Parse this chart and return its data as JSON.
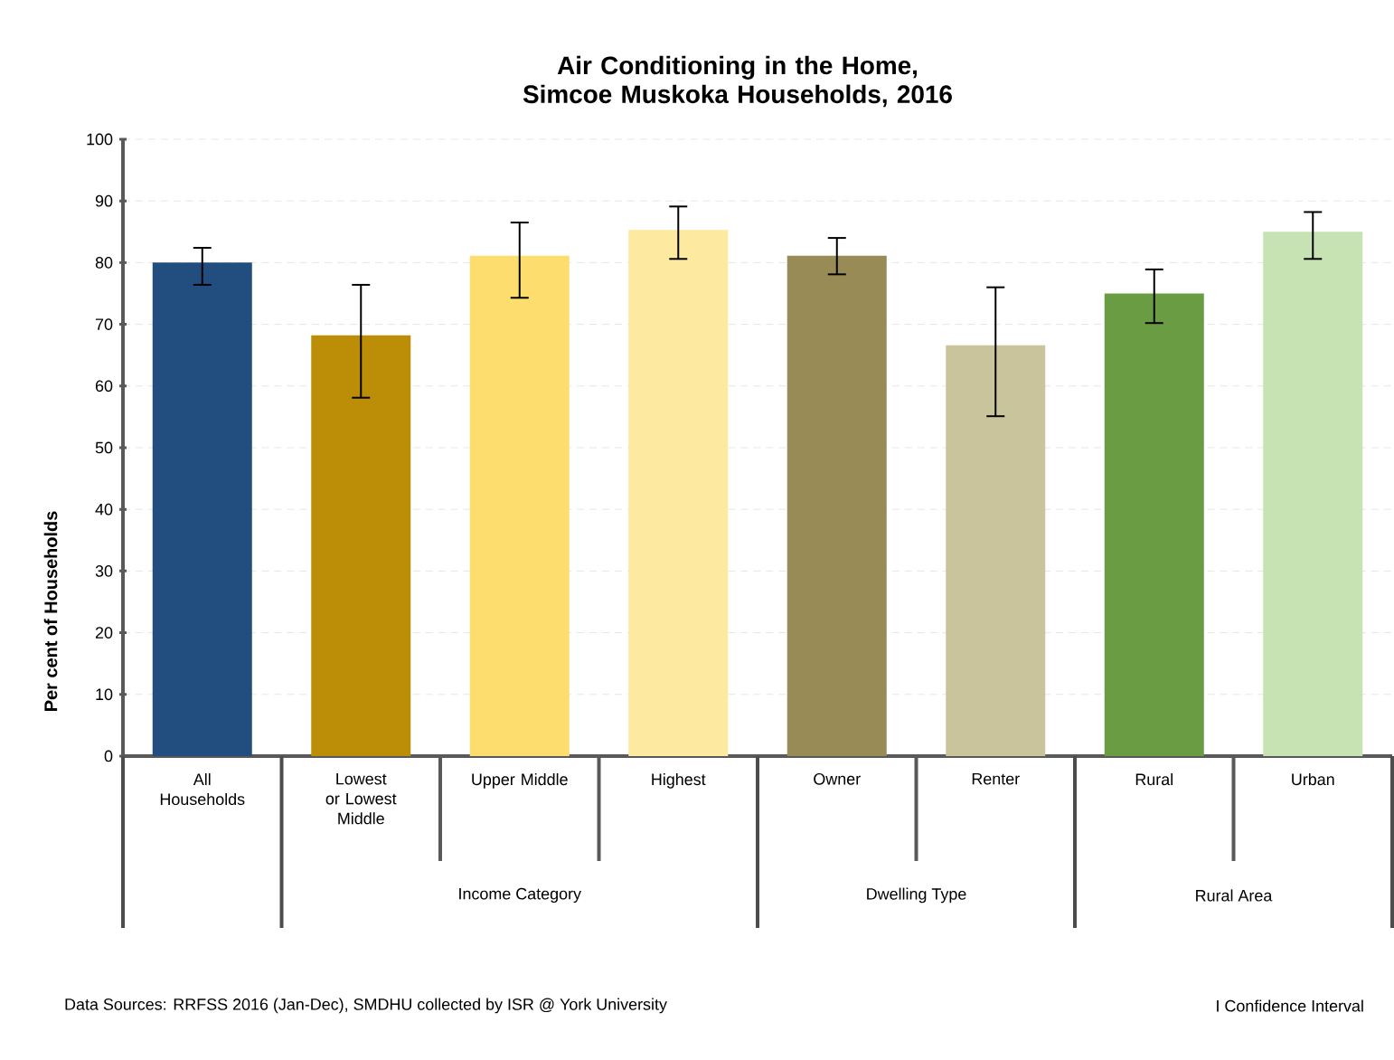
{
  "chart_data": {
    "type": "bar",
    "title": "Air Conditioning in the Home,\nSimcoe Muskoka Households, 2016",
    "ylabel": "Per cent of Households",
    "categories": [
      "All Households",
      "Lowest or Lowest Middle",
      "Upper Middle",
      "Highest",
      "Owner",
      "Renter",
      "Rural",
      "Urban"
    ],
    "values": [
      80,
      68.2,
      81.1,
      85.3,
      81.1,
      66.6,
      75,
      85
    ],
    "colors": [
      "#214e7e",
      "#bc8e07",
      "#fcdd6e",
      "#fde9a0",
      "#988b56",
      "#c9c49b",
      "#6a9c44",
      "#c8e3b3"
    ],
    "errors": [
      [
        76.4,
        82.4
      ],
      [
        58.1,
        76.4
      ],
      [
        74.3,
        86.5
      ],
      [
        80.6,
        89.1
      ],
      [
        78.1,
        84.0
      ],
      [
        55.1,
        76.0
      ],
      [
        70.2,
        78.9
      ],
      [
        80.6,
        88.2
      ]
    ],
    "ylim": [
      0,
      100
    ],
    "yticks": [
      0,
      10,
      20,
      30,
      40,
      50,
      60,
      70,
      80,
      90,
      100
    ],
    "grid": "y",
    "annotations": [
      "Income Category",
      "Dwelling Type",
      "Rural Area",
      "Data Sources: RRFSS  2016 (Jan-Dec), SMDHU  collected by ISR  @ York University",
      "I Confidence Interval"
    ]
  }
}
